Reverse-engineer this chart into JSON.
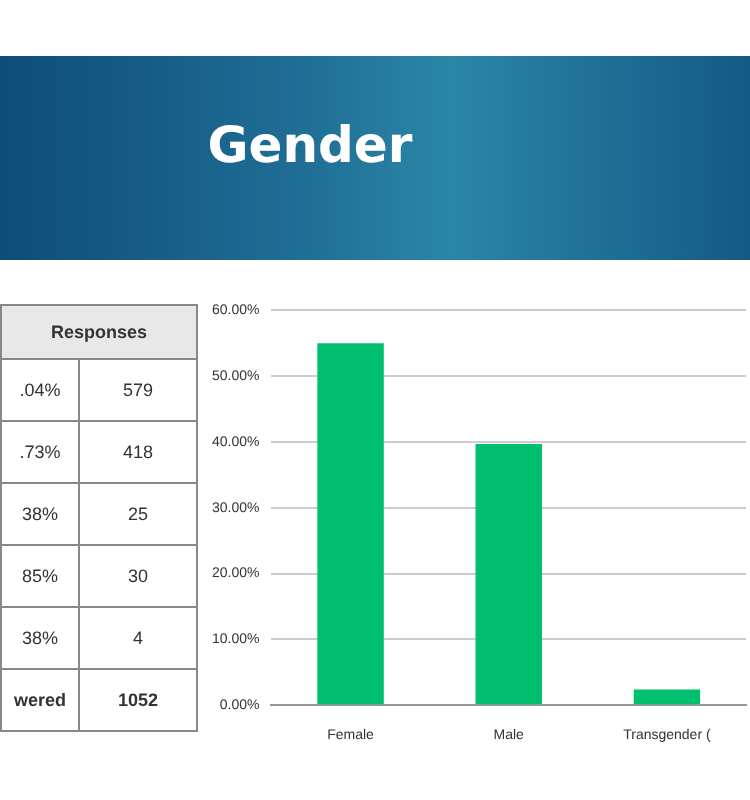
{
  "chart_data": {
    "type": "bar",
    "title": "Gender",
    "categories": [
      "Female",
      "Male",
      "Transgender ("
    ],
    "values": [
      55,
      39.7,
      2.4
    ],
    "color": "#00bf6f",
    "ylim": [
      0,
      60
    ],
    "yticks": [
      {
        "value": 0,
        "label": "0.00%"
      },
      {
        "value": 10,
        "label": "10.00%"
      },
      {
        "value": 20,
        "label": "20.00%"
      },
      {
        "value": 30,
        "label": "30.00%"
      },
      {
        "value": 40,
        "label": "40.00%"
      },
      {
        "value": 50,
        "label": "50.00%"
      },
      {
        "value": 60,
        "label": "60.00%"
      }
    ],
    "grid": "y",
    "legend": false,
    "annotations": [
      "Responses",
      ".04%",
      "579",
      ".73%",
      "418",
      "38%",
      "25",
      "85%",
      "30",
      "38%",
      "4",
      "wered",
      "1052"
    ]
  }
}
